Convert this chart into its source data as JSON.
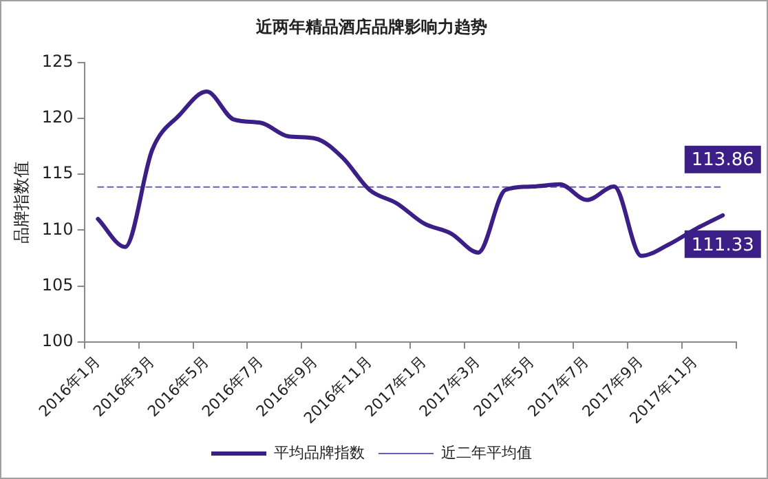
{
  "chart_data": {
    "type": "line",
    "title": "近两年精品酒店品牌影响力趋势",
    "ylabel": "品牌指数值",
    "categories": [
      "2016年1月",
      null,
      "2016年3月",
      null,
      "2016年5月",
      null,
      "2016年7月",
      null,
      "2016年9月",
      null,
      "2016年11月",
      null,
      "2017年1月",
      null,
      "2017年3月",
      null,
      "2017年5月",
      null,
      "2017年7月",
      null,
      "2017年9月",
      null,
      "2017年11月",
      null
    ],
    "series": [
      {
        "name": "平均品牌指数",
        "color": "#3b1f87",
        "line_style": "solid",
        "values": [
          111.0,
          108.5,
          117.2,
          120.3,
          122.4,
          119.9,
          119.6,
          118.4,
          118.2,
          116.5,
          113.6,
          112.4,
          110.6,
          109.7,
          108.0,
          113.6,
          113.9,
          114.1,
          112.7,
          113.9,
          107.7,
          108.7,
          110.1,
          111.33
        ],
        "value_labels": [
          null,
          null,
          null,
          null,
          null,
          null,
          null,
          null,
          null,
          null,
          null,
          null,
          null,
          null,
          null,
          null,
          null,
          null,
          null,
          null,
          null,
          null,
          null,
          "111.33"
        ]
      },
      {
        "name": "近二年平均值",
        "color": "#6b5bb5",
        "line_style": "dashed",
        "values": [
          113.86,
          113.86,
          113.86,
          113.86,
          113.86,
          113.86,
          113.86,
          113.86,
          113.86,
          113.86,
          113.86,
          113.86,
          113.86,
          113.86,
          113.86,
          113.86,
          113.86,
          113.86,
          113.86,
          113.86,
          113.86,
          113.86,
          113.86,
          113.86
        ],
        "value_labels": [
          null,
          null,
          null,
          null,
          null,
          null,
          null,
          null,
          null,
          null,
          null,
          null,
          null,
          null,
          null,
          null,
          null,
          null,
          null,
          null,
          null,
          null,
          null,
          "113.86"
        ]
      }
    ],
    "ylim": [
      100,
      125
    ],
    "yticks": [
      100,
      105,
      110,
      115,
      120,
      125
    ],
    "grid": false,
    "legend": "bottom",
    "marker": "none"
  }
}
